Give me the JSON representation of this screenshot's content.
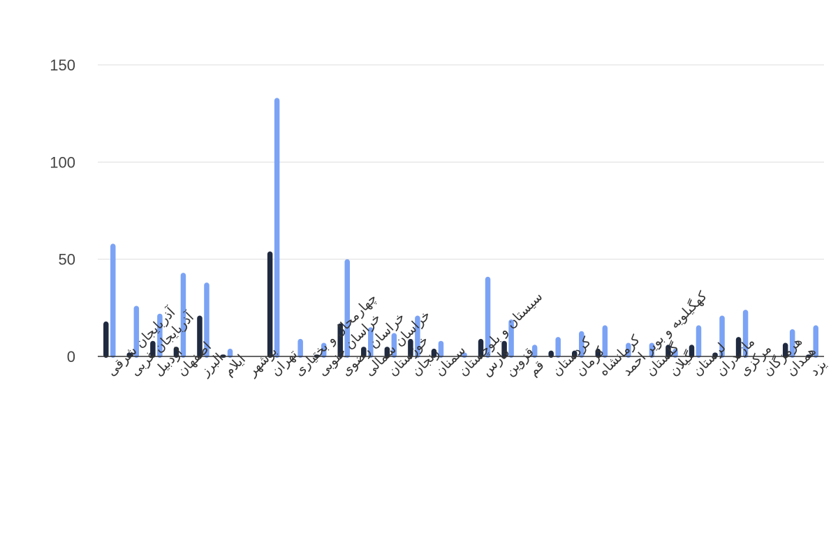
{
  "chart_data": {
    "type": "bar",
    "categories": [
      "آذربایجان شرقی",
      "آذربایجان غربی",
      "اردبیل",
      "اصفهان",
      "البرز",
      "ایلام",
      "بوشهر",
      "تهران",
      "چهارمحال و بختیاری",
      "خراسان جنوبی",
      "خراسان رضوی",
      "خراسان شمالی",
      "خوزستان",
      "زنجان",
      "سمنان",
      "سیستان و بلوچستان",
      "فارس",
      "قزوین",
      "قم",
      "کردستان",
      "کرمان",
      "کرمانشاه",
      "کهگیلویه و بویر احمد",
      "گلستان",
      "گیلان",
      "لرستان",
      "مازندران",
      "مرکزی",
      "هرمزگان",
      "همدان",
      "یزد"
    ],
    "series": [
      {
        "color": "#1f2a40",
        "values": [
          18,
          2,
          8,
          5,
          21,
          1,
          0,
          54,
          0,
          1,
          17,
          5,
          5,
          9,
          4,
          0,
          9,
          8,
          0,
          3,
          3,
          4,
          0,
          0,
          6,
          6,
          2,
          10,
          0,
          7,
          1
        ]
      },
      {
        "color": "#7ba3f5",
        "values": [
          58,
          26,
          22,
          43,
          38,
          4,
          0,
          133,
          9,
          7,
          50,
          15,
          12,
          21,
          8,
          2,
          41,
          19,
          6,
          10,
          13,
          16,
          7,
          7,
          4,
          16,
          21,
          24,
          0,
          14,
          16
        ]
      }
    ],
    "y_ticks": [
      "0",
      "50",
      "100",
      "150"
    ],
    "ylim": [
      0,
      150
    ],
    "grid": true,
    "legend": "none",
    "xlabel": "",
    "ylabel": "",
    "title": ""
  }
}
